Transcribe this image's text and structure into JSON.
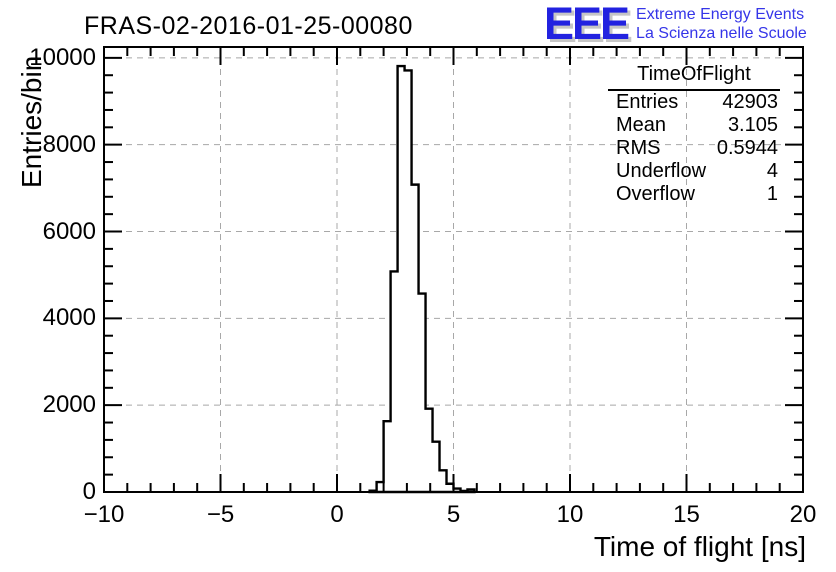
{
  "title": "FRAS-02-2016-01-25-00080",
  "logo": {
    "acronym": "EEE",
    "line1": "Extreme Energy Events",
    "line2": "La Scienza nelle Scuole",
    "blue": "#2222e0",
    "text_blue": "#3535e8",
    "shadow_gray": "#c6c6c6"
  },
  "stats": {
    "header": "TimeOfFlight",
    "rows": [
      {
        "label": "Entries",
        "value": "42903"
      },
      {
        "label": "Mean",
        "value": "3.105"
      },
      {
        "label": "RMS",
        "value": "0.5944"
      },
      {
        "label": "Underflow",
        "value": "4"
      },
      {
        "label": "Overflow",
        "value": "1"
      }
    ]
  },
  "chart_data": {
    "type": "bar",
    "subtype": "step-histogram",
    "title": "FRAS-02-2016-01-25-00080",
    "xlabel": "Time of flight [ns]",
    "ylabel": "Entries/bin",
    "xlim": [
      -10,
      20
    ],
    "ylim": [
      0,
      10250
    ],
    "x_major_ticks": [
      -10,
      -5,
      0,
      5,
      10,
      15,
      20
    ],
    "x_tick_labels": [
      "−10",
      "−5",
      "0",
      "5",
      "10",
      "15",
      "20"
    ],
    "x_minor_step": 1,
    "y_major_ticks": [
      0,
      2000,
      4000,
      6000,
      8000,
      10000
    ],
    "y_tick_labels": [
      "0",
      "2000",
      "4000",
      "6000",
      "8000",
      "10000"
    ],
    "y_minor_step": 400,
    "grid": true,
    "x_gridlines": [
      -5,
      0,
      5,
      10,
      15
    ],
    "y_gridlines": [
      2000,
      4000,
      6000,
      8000,
      10000
    ],
    "bin_width": 0.3,
    "bin_left_edges": [
      1.4,
      1.7,
      2.0,
      2.3,
      2.6,
      2.9,
      3.2,
      3.5,
      3.8,
      4.1,
      4.4,
      4.7,
      5.0,
      5.3,
      5.6
    ],
    "values": [
      30,
      230,
      1630,
      5080,
      9810,
      9710,
      7080,
      4570,
      1920,
      1160,
      500,
      190,
      80,
      25,
      60
    ],
    "entries": 42903,
    "mean": 3.105,
    "rms": 0.5944,
    "underflow": 4,
    "overflow": 1,
    "line_color": "#000000",
    "fill_color": "#ffffff",
    "grid_color": "#a8a8a8",
    "legend_position": "none"
  }
}
